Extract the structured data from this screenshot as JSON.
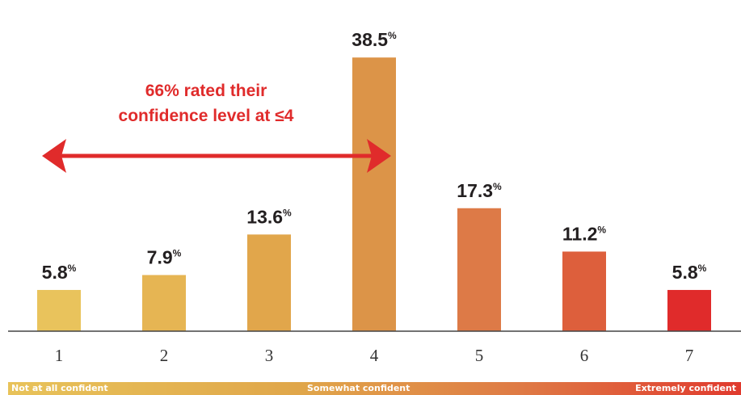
{
  "chart_data": {
    "type": "bar",
    "categories": [
      "1",
      "2",
      "3",
      "4",
      "5",
      "6",
      "7"
    ],
    "values": [
      5.8,
      7.9,
      13.6,
      38.5,
      17.3,
      11.2,
      5.8
    ],
    "value_labels": [
      "5.8",
      "7.9",
      "13.6",
      "38.5",
      "17.3",
      "11.2",
      "5.8"
    ],
    "value_suffix": "%",
    "bar_colors": [
      "#e9c35c",
      "#e6b553",
      "#e1a64b",
      "#dc9448",
      "#dd7a47",
      "#dd5f3c",
      "#e02b2b"
    ],
    "ylim": [
      0,
      40
    ],
    "grid": false,
    "annotation": {
      "line1": "66% rated their",
      "line2": "confidence level at ≤4",
      "color": "#e02b2b"
    },
    "scale_labels": {
      "low": "Not at all confident",
      "mid": "Somewhat confident",
      "high": "Extremely confident"
    }
  }
}
